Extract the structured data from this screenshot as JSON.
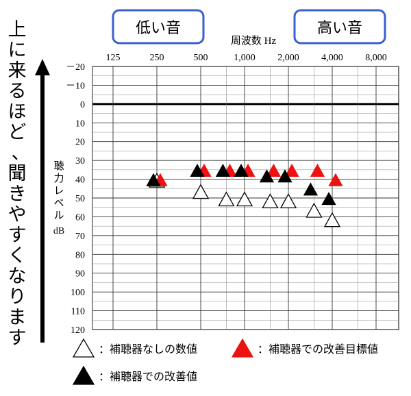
{
  "chart_data": {
    "type": "scatter",
    "title": "",
    "xlabel": "周波数 Hz",
    "ylabel": "聴力レベル dB",
    "x_categories": [
      "125",
      "250",
      "500",
      "1,000",
      "2,000",
      "4,000",
      "8,000"
    ],
    "y_ticks": [
      "－20",
      "－10",
      "0",
      "10",
      "20",
      "30",
      "40",
      "50",
      "60",
      "70",
      "80",
      "90",
      "100",
      "110",
      "120"
    ],
    "ylim": [
      -20,
      120
    ],
    "y_inverted": true,
    "grid": true,
    "reference_line_y": 0,
    "low_label": "低い音",
    "high_label": "高い音",
    "side_caption": "上に来るほど、聞きやすくなります",
    "series": [
      {
        "name": "補聴器なしの数値",
        "marker": "open-triangle",
        "color": "#ffffff",
        "points": [
          {
            "x": "250",
            "y": 40
          },
          {
            "x": "500",
            "y": 46
          },
          {
            "x": "750",
            "y": 50
          },
          {
            "x": "1,000",
            "y": 50
          },
          {
            "x": "1,500",
            "y": 51
          },
          {
            "x": "2,000",
            "y": 51
          },
          {
            "x": "3,000",
            "y": 56
          },
          {
            "x": "4,000",
            "y": 61
          }
        ]
      },
      {
        "name": "補聴器での改善目標値",
        "marker": "filled-triangle",
        "color": "#ee1111",
        "points": [
          {
            "x": "250",
            "y": 40
          },
          {
            "x": "500",
            "y": 35
          },
          {
            "x": "750",
            "y": 35
          },
          {
            "x": "1,000",
            "y": 35
          },
          {
            "x": "1,500",
            "y": 35
          },
          {
            "x": "2,000",
            "y": 35
          },
          {
            "x": "3,000",
            "y": 35
          },
          {
            "x": "4,000",
            "y": 40
          }
        ]
      },
      {
        "name": "補聴器での改善値",
        "marker": "filled-triangle",
        "color": "#000000",
        "points": [
          {
            "x": "250",
            "y": 40
          },
          {
            "x": "500",
            "y": 35
          },
          {
            "x": "750",
            "y": 35
          },
          {
            "x": "1,000",
            "y": 35
          },
          {
            "x": "1,500",
            "y": 38
          },
          {
            "x": "2,000",
            "y": 38
          },
          {
            "x": "3,000",
            "y": 45
          },
          {
            "x": "4,000",
            "y": 50
          }
        ]
      }
    ],
    "legend": [
      {
        "name": "補聴器なしの数値",
        "marker": "open-triangle",
        "color": "#ffffff"
      },
      {
        "name": "補聴器での改善目標値",
        "marker": "filled-triangle",
        "color": "#ee1111"
      },
      {
        "name": "補聴器での改善値",
        "marker": "filled-triangle",
        "color": "#000000"
      }
    ]
  }
}
